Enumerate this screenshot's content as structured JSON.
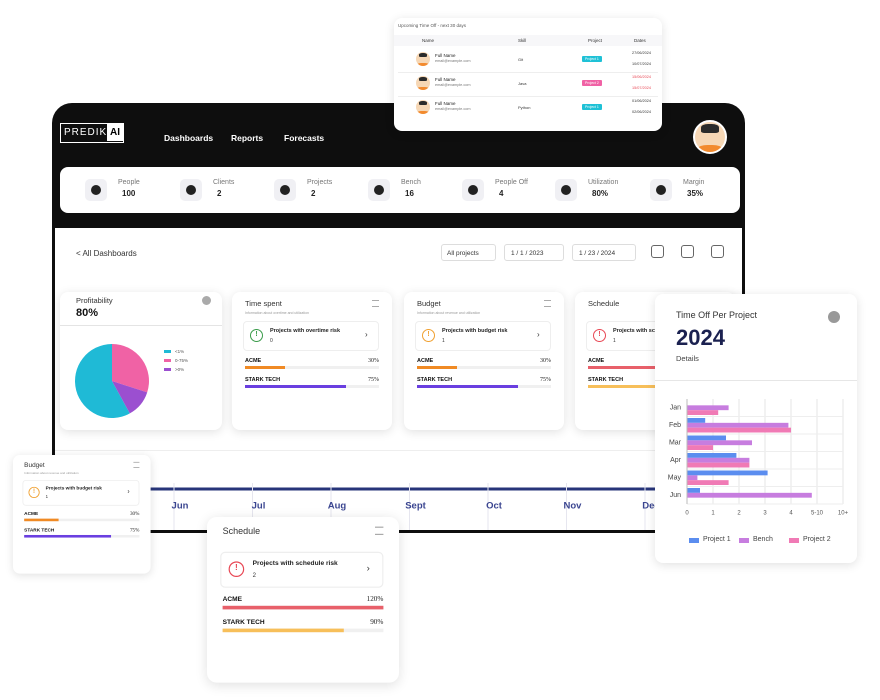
{
  "time_off_table": {
    "title": "Upcoming Time Off - next 30 days",
    "headers": [
      "Name",
      "Skill",
      "Project",
      "Dates"
    ],
    "rows": [
      {
        "name": "Full Name",
        "email": "email@example.com",
        "skill": "Git",
        "project": "Project 1",
        "start": "27/06/2024",
        "end": "10/07/2024"
      },
      {
        "name": "Full Name",
        "email": "email@example.com",
        "skill": "Java",
        "project": "Project 2",
        "start": "15/06/2024",
        "end": "15/07/2024"
      },
      {
        "name": "Full Name",
        "email": "email@example.com",
        "skill": "Python",
        "project": "Project 1",
        "start": "01/06/2024",
        "end": "02/06/2024"
      }
    ]
  },
  "nav": {
    "logo": "PREDIKT",
    "logo_badge": "AI",
    "links": [
      "Dashboards",
      "Reports",
      "Forecasts"
    ]
  },
  "stats": [
    {
      "label": "People",
      "value": "100"
    },
    {
      "label": "Clients",
      "value": "2"
    },
    {
      "label": "Projects",
      "value": "2"
    },
    {
      "label": "Bench",
      "value": "16"
    },
    {
      "label": "People Off",
      "value": "4"
    },
    {
      "label": "Utilization",
      "value": "80%"
    },
    {
      "label": "Margin",
      "value": "35%"
    }
  ],
  "toolbar": {
    "back": "< All Dashboards",
    "filter": "All projects",
    "start_date": "1 / 1 / 2023",
    "end_date": "1 / 23 / 2024"
  },
  "profitability": {
    "title": "Profitability",
    "value": "80%"
  },
  "cards": [
    {
      "title": "Time spent",
      "subtitle": "Information about overtime and utilization",
      "risk_label": "Projects with overtime risk",
      "risk_count": "0",
      "projects": [
        {
          "name": "ACME",
          "value": 30,
          "value_label": "30%"
        },
        {
          "name": "STARK TECH",
          "value": 75,
          "value_label": "75%"
        }
      ]
    },
    {
      "title": "Budget",
      "subtitle": "Information about revenue and utilization",
      "risk_label": "Projects with budget risk",
      "risk_count": "1",
      "projects": [
        {
          "name": "ACME",
          "value": 30,
          "value_label": "30%"
        },
        {
          "name": "STARK TECH",
          "value": 75,
          "value_label": "75%"
        }
      ]
    },
    {
      "title": "Schedule",
      "risk_label": "Projects with schedule risk",
      "risk_count": "1",
      "projects": [
        {
          "name": "ACME"
        },
        {
          "name": "STARK TECH"
        }
      ]
    },
    {
      "title": "Budget",
      "subtitle": "Information about revenue and utilization",
      "risk_label": "Projects with budget risk",
      "risk_count": "1",
      "projects": [
        {
          "name": "ACME",
          "value": 30,
          "value_label": "30%"
        },
        {
          "name": "STARK TECH",
          "value": 75,
          "value_label": "75%"
        }
      ]
    },
    {
      "title": "Schedule",
      "risk_label": "Projects with schedule risk",
      "risk_count": "2",
      "projects": [
        {
          "name": "ACME",
          "value": 120,
          "value_label": "120%"
        },
        {
          "name": "STARK TECH",
          "value": 90,
          "value_label": "90%"
        }
      ]
    }
  ],
  "timeline": {
    "months": [
      "Jun",
      "Jul",
      "Aug",
      "Sept",
      "Oct",
      "Nov",
      "Dec"
    ]
  },
  "chart_data": [
    {
      "type": "pie",
      "categories": [
        "<1%",
        "0-75%",
        ">0%"
      ],
      "values": [
        58,
        30,
        12
      ],
      "colors": [
        "#1fbad6",
        "#f062a5",
        "#9b4fd0"
      ]
    },
    {
      "type": "bar",
      "orientation": "horizontal",
      "title": "Time Off Per Project",
      "subtitle": "2024",
      "caption": "Details",
      "categories": [
        "Jan",
        "Feb",
        "Mar",
        "Apr",
        "May",
        "Jun"
      ],
      "series": [
        {
          "name": "Project 1",
          "color": "#5b8def",
          "values": [
            0,
            0.7,
            1.5,
            1.9,
            3.1,
            0.5
          ]
        },
        {
          "name": "Bench",
          "color": "#c77ddf",
          "values": [
            1.6,
            3.9,
            2.5,
            2.4,
            0.4,
            4.8
          ]
        },
        {
          "name": "Project 2",
          "color": "#f07ab5",
          "values": [
            1.2,
            4.0,
            1.0,
            2.4,
            1.6,
            0
          ]
        }
      ],
      "xlim": [
        0,
        6
      ],
      "xticks": [
        0,
        1,
        2,
        3,
        4,
        {
          "value": 5,
          "label": "5-10"
        },
        {
          "value": 6,
          "label": "10+"
        }
      ],
      "grid": true
    }
  ]
}
